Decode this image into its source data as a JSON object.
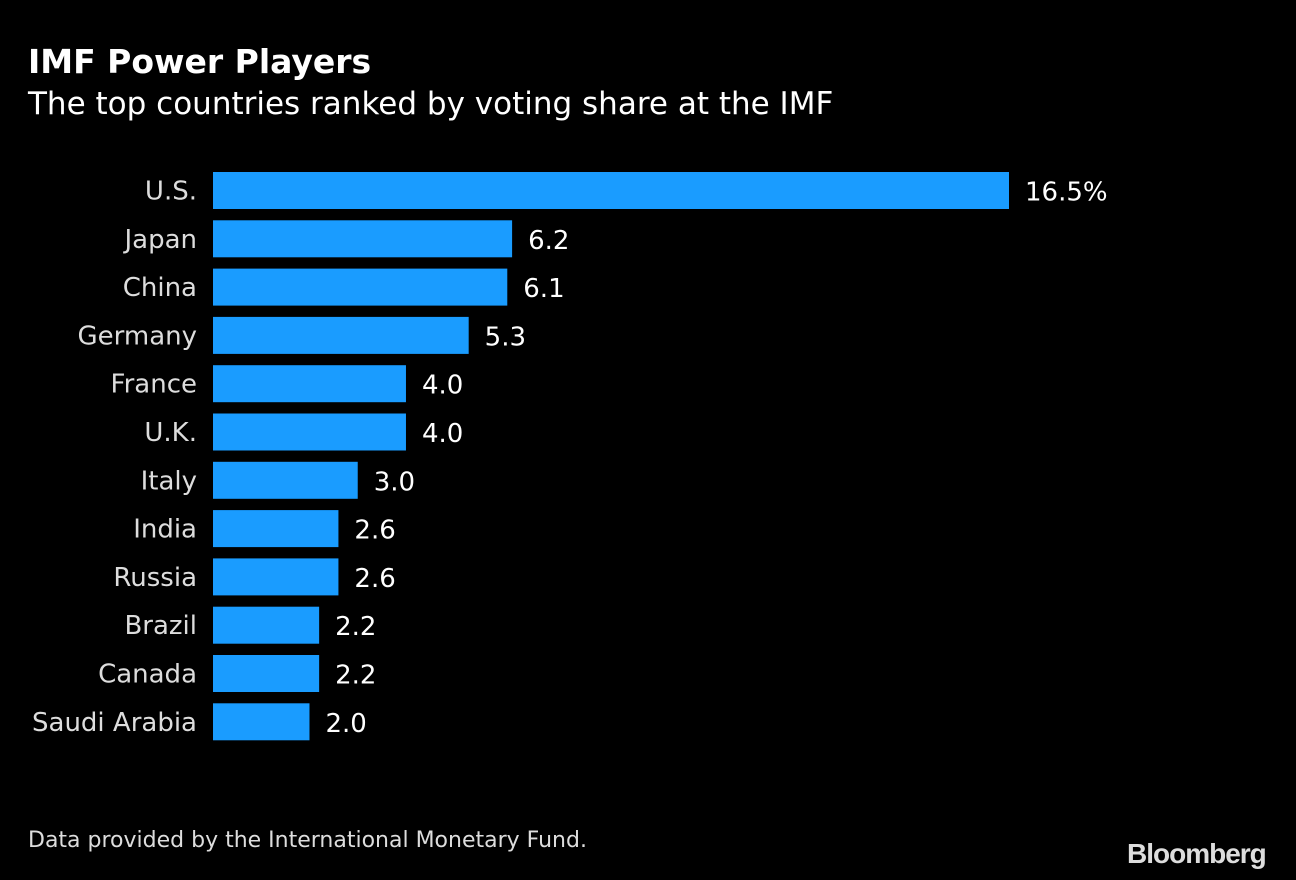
{
  "title": "IMF Power Players",
  "subtitle": "The top countries ranked by voting share at the IMF",
  "source": "Data provided by the International Monetary Fund.",
  "logo": "Bloomberg",
  "colors": {
    "bar": "#1a9cff",
    "background": "#000000",
    "text": "#ffffff",
    "label": "#dddddd"
  },
  "chart_data": {
    "type": "bar",
    "orientation": "horizontal",
    "title": "IMF Power Players",
    "subtitle": "The top countries ranked by voting share at the IMF",
    "categories": [
      "U.S.",
      "Japan",
      "China",
      "Germany",
      "France",
      "U.K.",
      "Italy",
      "India",
      "Russia",
      "Brazil",
      "Canada",
      "Saudi Arabia"
    ],
    "values": [
      16.5,
      6.2,
      6.1,
      5.3,
      4.0,
      4.0,
      3.0,
      2.6,
      2.6,
      2.2,
      2.2,
      2.0
    ],
    "data_labels": [
      "16.5%",
      "6.2",
      "6.1",
      "5.3",
      "4.0",
      "4.0",
      "3.0",
      "2.6",
      "2.6",
      "2.2",
      "2.2",
      "2.0"
    ],
    "unit": "%",
    "xlim": [
      0,
      16.5
    ],
    "grid": false
  }
}
